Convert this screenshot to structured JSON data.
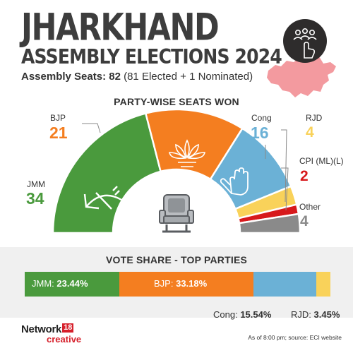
{
  "header": {
    "title_line1": "JHARKHAND",
    "title_line2": "ASSEMBLY ELECTIONS 2024",
    "seats_label": "Assembly Seats:",
    "seats_total": "82",
    "seats_detail": "(81 Elected + 1 Nominated)"
  },
  "icons": {
    "voter_icon": "voting-hand-people-icon",
    "state_map": "jharkhand-map-icon"
  },
  "seats_section_title": "PARTY-WISE SEATS WON",
  "vote_section_title": "VOTE SHARE - TOP PARTIES",
  "colors": {
    "JMM": "#4a9a3d",
    "BJP": "#f47e20",
    "Cong": "#6bb1d6",
    "RJD": "#f9d25a",
    "CPI (ML)(L)": "#d7191c",
    "Other": "#8a8a8a",
    "map": "#f39a9f"
  },
  "party_labels": {
    "JMM": {
      "name": "JMM",
      "seats": "34"
    },
    "BJP": {
      "name": "BJP",
      "seats": "21"
    },
    "Cong": {
      "name": "Cong",
      "seats": "16"
    },
    "RJD": {
      "name": "RJD",
      "seats": "4"
    },
    "CPI": {
      "name": "CPI (ML)(L)",
      "seats": "2"
    },
    "Other": {
      "name": "Other",
      "seats": "4"
    }
  },
  "vote_labels": {
    "jmm_name": "JMM:",
    "jmm_value": "23.44%",
    "bjp_name": "BJP:",
    "bjp_value": "33.18%",
    "cong_name": "Cong:",
    "cong_value": "15.54%",
    "rjd_name": "RJD:",
    "rjd_value": "3.45%"
  },
  "footer": {
    "logo_main": "Network",
    "logo_number": "18",
    "logo_sub": "creative",
    "source": "As of 8:00 pm; source: ECI website"
  },
  "chart_data": [
    {
      "type": "pie",
      "title": "PARTY-WISE SEATS WON",
      "categories": [
        "JMM",
        "BJP",
        "Cong",
        "RJD",
        "CPI (ML)(L)",
        "Other"
      ],
      "values": [
        34,
        21,
        16,
        4,
        2,
        4
      ]
    },
    {
      "type": "bar",
      "title": "VOTE SHARE - TOP PARTIES",
      "categories": [
        "JMM",
        "BJP",
        "Cong",
        "RJD"
      ],
      "values": [
        23.44,
        33.18,
        15.54,
        3.45
      ],
      "unit": "%"
    }
  ]
}
